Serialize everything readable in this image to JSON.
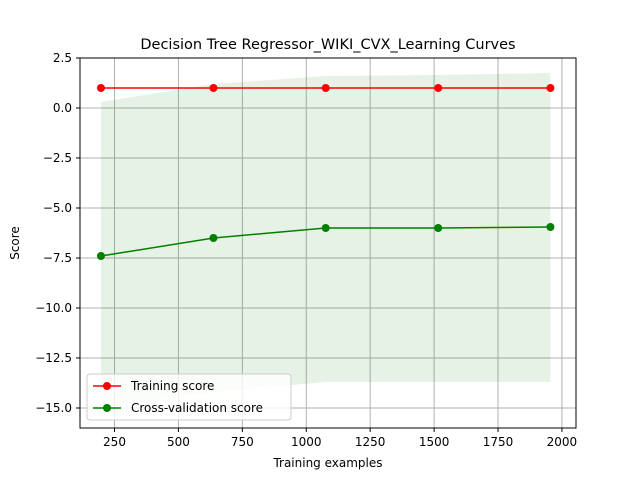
{
  "chart_data": {
    "type": "line",
    "title": "Decision Tree Regressor_WIKI_CVX_Learning Curves",
    "xlabel": "Training examples",
    "ylabel": "Score",
    "xlim": [
      115,
      2055
    ],
    "ylim": [
      -16,
      2.5
    ],
    "xticks": [
      250,
      500,
      750,
      1000,
      1250,
      1500,
      1750,
      2000
    ],
    "xtick_labels": [
      "250",
      "500",
      "750",
      "1000",
      "1250",
      "1500",
      "1750",
      "2000"
    ],
    "yticks": [
      2.5,
      0.0,
      -2.5,
      -5.0,
      -7.5,
      -10.0,
      -12.5,
      -15.0
    ],
    "ytick_labels": [
      "2.5",
      "0.0",
      "−2.5",
      "−5.0",
      "−7.5",
      "−10.0",
      "−12.5",
      "−15.0"
    ],
    "grid": true,
    "legend_position": "lower-left",
    "x": [
      197,
      637,
      1076,
      1516,
      1955
    ],
    "series": [
      {
        "name": "Training score",
        "color": "#ff0000",
        "values": [
          1.0,
          1.0,
          1.0,
          1.0,
          1.0
        ],
        "band_low": [
          1.0,
          1.0,
          1.0,
          1.0,
          1.0
        ],
        "band_high": [
          1.0,
          1.0,
          1.0,
          1.0,
          1.0
        ]
      },
      {
        "name": "Cross-validation score",
        "color": "#008000",
        "values": [
          -7.4,
          -6.5,
          -6.0,
          -6.0,
          -5.95
        ],
        "band_low": [
          -15.0,
          -14.2,
          -13.7,
          -13.7,
          -13.7
        ],
        "band_high": [
          0.3,
          1.2,
          1.6,
          1.65,
          1.75
        ]
      }
    ]
  }
}
